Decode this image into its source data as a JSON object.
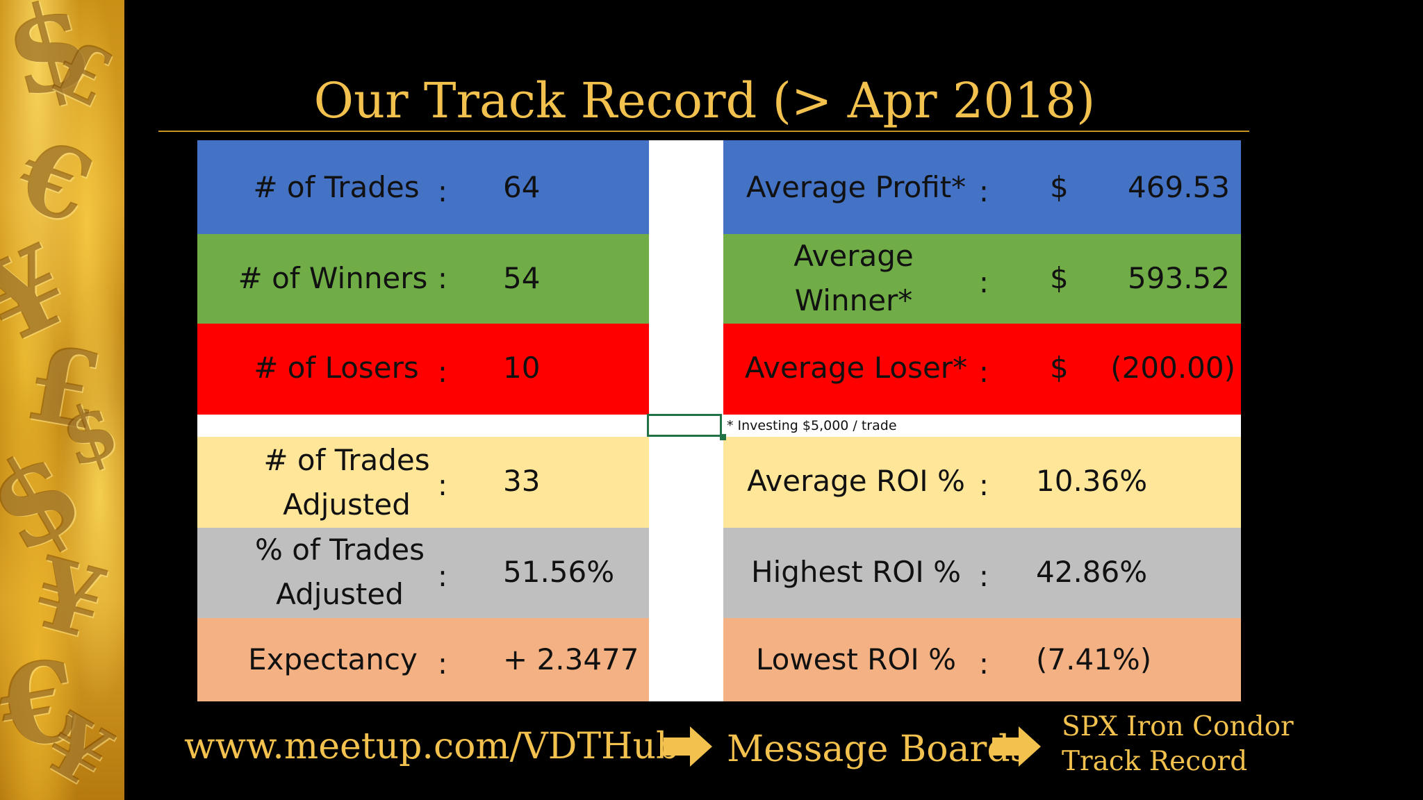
{
  "title": "Our Track Record (> Apr 2018)",
  "colors": {
    "title_gold": "#f2c14e",
    "row1": "#4472c4",
    "row2": "#70ad47",
    "row3": "#ff0000",
    "row4": "#ffe699",
    "row5": "#bfbfbf",
    "row6": "#f4b183"
  },
  "left_rows": [
    {
      "label": "# of Trades",
      "colon": ":",
      "value": "64"
    },
    {
      "label": "# of Winners",
      "colon": ":",
      "value": "54"
    },
    {
      "label": "# of Losers",
      "colon": ":",
      "value": "10"
    },
    {
      "label": "# of Trades Adjusted",
      "colon": ":",
      "value": "33"
    },
    {
      "label": "% of Trades Adjusted",
      "colon": ":",
      "value": "51.56%"
    },
    {
      "label": "Expectancy",
      "colon": ":",
      "value": "+ 2.3477"
    }
  ],
  "right_rows": [
    {
      "label": "Average Profit*",
      "colon": ":",
      "currency": "$",
      "value": "469.53"
    },
    {
      "label": "Average Winner*",
      "colon": ":",
      "currency": "$",
      "value": "593.52"
    },
    {
      "label": "Average Loser*",
      "colon": ":",
      "currency": "$",
      "value": "(200.00)"
    },
    {
      "label": "Average ROI %",
      "colon": ":",
      "value": "10.36%"
    },
    {
      "label": "Highest ROI %",
      "colon": ":",
      "value": "42.86%"
    },
    {
      "label": "Lowest ROI %",
      "colon": ":",
      "value": "(7.41%)"
    }
  ],
  "footnote": "* Investing $5,000 / trade",
  "footer": {
    "url": "www.meetup.com/VDTHub",
    "step2": "Message Boards",
    "step3_line1": "SPX Iron Condor",
    "step3_line2": "Track Record"
  },
  "decor": {
    "glyphs": [
      "$",
      "€",
      "¥",
      "£",
      "$",
      "¥",
      "€",
      "£",
      "$",
      "¥"
    ]
  }
}
